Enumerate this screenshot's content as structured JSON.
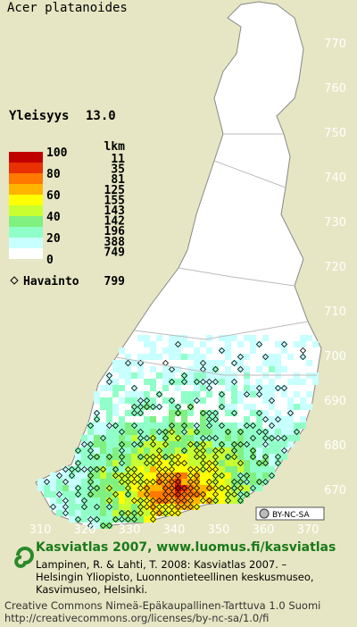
{
  "title": "Acer platanoides",
  "frequency": {
    "label": "Yleisyys",
    "value": "13.0"
  },
  "legend": {
    "count_header": "lkm",
    "scale_labels": [
      100,
      80,
      60,
      40,
      20,
      0
    ],
    "classes": [
      {
        "color": "#c00000",
        "count": 11
      },
      {
        "color": "#e83000",
        "count": 35
      },
      {
        "color": "#ff7800",
        "count": 81
      },
      {
        "color": "#ffb400",
        "count": 125
      },
      {
        "color": "#ffff00",
        "count": 155
      },
      {
        "color": "#c8ff30",
        "count": 143
      },
      {
        "color": "#80f080",
        "count": 142
      },
      {
        "color": "#90ffc8",
        "count": 196
      },
      {
        "color": "#c8ffff",
        "count": 388
      },
      {
        "color": "#ffffff",
        "count": 749
      }
    ]
  },
  "observations": {
    "label": "Havainto",
    "count": 799
  },
  "grid": {
    "northing": [
      770,
      760,
      750,
      740,
      730,
      720,
      710,
      700,
      690,
      680,
      670
    ],
    "easting": [
      310,
      320,
      330,
      340,
      350,
      360,
      370
    ]
  },
  "license_badge": "BY-NC-SA",
  "footer": {
    "heading": "Kasviatlas 2007, www.luomus.fi/kasviatlas",
    "citation": [
      "Lampinen, R. & Lahti, T. 2008: Kasviatlas 2007. –",
      "Helsingin Yliopisto, Luonnontieteellinen keskusmuseo,",
      "Kasvimuseo, Helsinki."
    ],
    "license": [
      "Creative Commons Nimeä-Epäkaupallinen-Tarttuva 1.0 Suomi",
      "http://creativecommons.org/licenses/by-nc-sa/1.0/fi"
    ]
  }
}
